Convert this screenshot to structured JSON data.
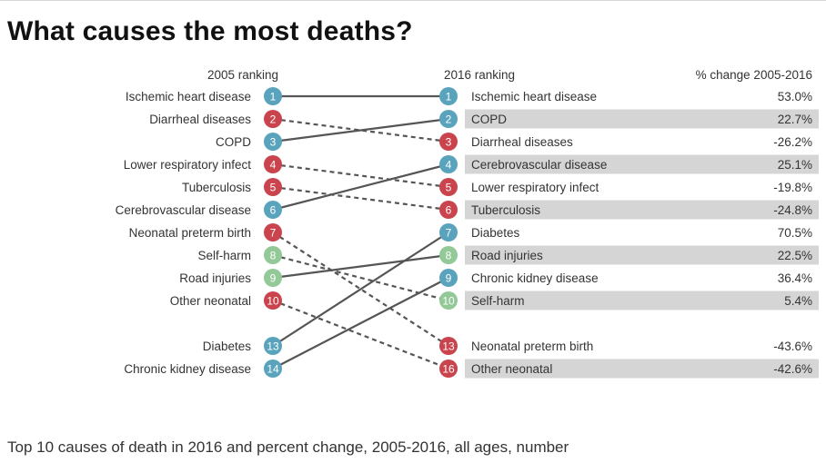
{
  "title": "What causes the most deaths?",
  "caption": "Top 10 causes of death in 2016 and percent change, 2005-2016, all ages, number",
  "colors": {
    "blue": "#5aa3bd",
    "red": "#c9444c",
    "green": "#93c897",
    "band": "#d5d5d5",
    "line": "#555555"
  },
  "chart_data": {
    "type": "slope",
    "headers": {
      "left": "2005 ranking",
      "middle": "2016 ranking",
      "right": "% change 2005-2016"
    },
    "left": [
      {
        "rank": 1,
        "label": "Ischemic heart disease",
        "group": "blue"
      },
      {
        "rank": 2,
        "label": "Diarrheal diseases",
        "group": "red"
      },
      {
        "rank": 3,
        "label": "COPD",
        "group": "blue"
      },
      {
        "rank": 4,
        "label": "Lower respiratory infect",
        "group": "red"
      },
      {
        "rank": 5,
        "label": "Tuberculosis",
        "group": "red"
      },
      {
        "rank": 6,
        "label": "Cerebrovascular disease",
        "group": "blue"
      },
      {
        "rank": 7,
        "label": "Neonatal preterm birth",
        "group": "red"
      },
      {
        "rank": 8,
        "label": "Self-harm",
        "group": "green"
      },
      {
        "rank": 9,
        "label": "Road injuries",
        "group": "green"
      },
      {
        "rank": 10,
        "label": "Other neonatal",
        "group": "red"
      },
      {
        "rank": 13,
        "label": "Diabetes",
        "group": "blue"
      },
      {
        "rank": 14,
        "label": "Chronic kidney disease",
        "group": "blue"
      }
    ],
    "right": [
      {
        "rank": 1,
        "label": "Ischemic heart disease",
        "group": "blue",
        "change": "53.0%"
      },
      {
        "rank": 2,
        "label": "COPD",
        "group": "blue",
        "change": "22.7%"
      },
      {
        "rank": 3,
        "label": "Diarrheal diseases",
        "group": "red",
        "change": "-26.2%"
      },
      {
        "rank": 4,
        "label": "Cerebrovascular disease",
        "group": "blue",
        "change": "25.1%"
      },
      {
        "rank": 5,
        "label": "Lower respiratory infect",
        "group": "red",
        "change": "-19.8%"
      },
      {
        "rank": 6,
        "label": "Tuberculosis",
        "group": "red",
        "change": "-24.8%"
      },
      {
        "rank": 7,
        "label": "Diabetes",
        "group": "blue",
        "change": "70.5%"
      },
      {
        "rank": 8,
        "label": "Road injuries",
        "group": "green",
        "change": "22.5%"
      },
      {
        "rank": 9,
        "label": "Chronic kidney disease",
        "group": "blue",
        "change": "36.4%"
      },
      {
        "rank": 10,
        "label": "Self-harm",
        "group": "green",
        "change": "5.4%"
      },
      {
        "rank": 13,
        "label": "Neonatal preterm birth",
        "group": "red",
        "change": "-43.6%"
      },
      {
        "rank": 16,
        "label": "Other neonatal",
        "group": "red",
        "change": "-42.6%"
      }
    ],
    "links": [
      {
        "from": 1,
        "to": 1,
        "style": "solid"
      },
      {
        "from": 2,
        "to": 3,
        "style": "dashed"
      },
      {
        "from": 3,
        "to": 2,
        "style": "solid"
      },
      {
        "from": 4,
        "to": 5,
        "style": "dashed"
      },
      {
        "from": 5,
        "to": 6,
        "style": "dashed"
      },
      {
        "from": 6,
        "to": 4,
        "style": "solid"
      },
      {
        "from": 7,
        "to": 13,
        "style": "dashed"
      },
      {
        "from": 8,
        "to": 10,
        "style": "dashed"
      },
      {
        "from": 9,
        "to": 8,
        "style": "solid"
      },
      {
        "from": 10,
        "to": 16,
        "style": "dashed"
      },
      {
        "from": 13,
        "to": 7,
        "style": "solid"
      },
      {
        "from": 14,
        "to": 9,
        "style": "solid"
      }
    ],
    "banded_rows": [
      2,
      4,
      6,
      8,
      10,
      16
    ]
  }
}
